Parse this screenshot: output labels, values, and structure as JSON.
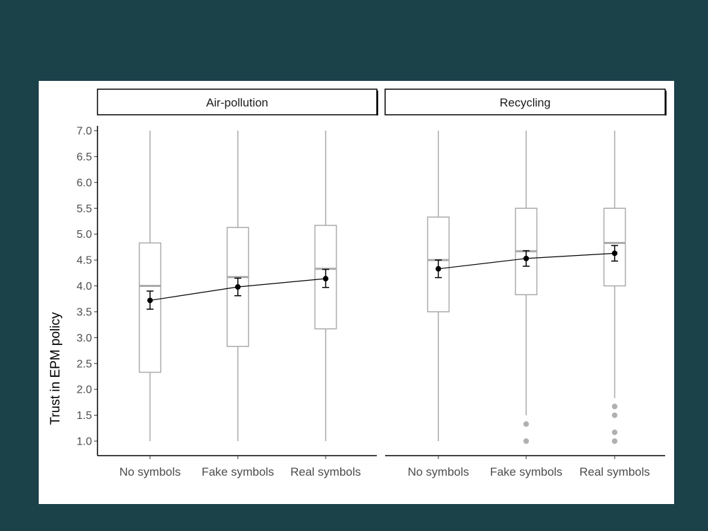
{
  "chart_data": {
    "type": "box",
    "ylabel": "Trust in EPM policy",
    "xlabel": "",
    "ylim": [
      0.75,
      7.25
    ],
    "yticks": [
      "1.0",
      "1.5",
      "2.0",
      "2.5",
      "3.0",
      "3.5",
      "4.0",
      "4.5",
      "5.0",
      "5.5",
      "6.0",
      "6.5",
      "7.0"
    ],
    "grid": false,
    "categories": [
      "No symbols",
      "Fake symbols",
      "Real symbols"
    ],
    "colors": {
      "box": "#aaaaaa",
      "point": "#000000",
      "line": "#000000",
      "outlier": "#b0b0b0"
    },
    "panels": [
      {
        "facet": "Air-pollution",
        "boxes": [
          {
            "category": "No symbols",
            "min": 1.0,
            "q1": 2.33,
            "median": 4.0,
            "q3": 4.83,
            "max": 7.0,
            "outliers": []
          },
          {
            "category": "Fake symbols",
            "min": 1.0,
            "q1": 2.83,
            "median": 4.17,
            "q3": 5.13,
            "max": 7.0,
            "outliers": []
          },
          {
            "category": "Real symbols",
            "min": 1.0,
            "q1": 3.17,
            "median": 4.33,
            "q3": 5.17,
            "max": 7.0,
            "outliers": []
          }
        ],
        "means": [
          {
            "category": "No symbols",
            "mean": 3.72,
            "lower": 3.55,
            "upper": 3.9
          },
          {
            "category": "Fake symbols",
            "mean": 3.98,
            "lower": 3.81,
            "upper": 4.15
          },
          {
            "category": "Real symbols",
            "mean": 4.14,
            "lower": 3.97,
            "upper": 4.32
          }
        ]
      },
      {
        "facet": "Recycling",
        "boxes": [
          {
            "category": "No symbols",
            "min": 1.0,
            "q1": 3.5,
            "median": 4.5,
            "q3": 5.33,
            "max": 7.0,
            "outliers": []
          },
          {
            "category": "Fake symbols",
            "min": 1.5,
            "q1": 3.83,
            "median": 4.67,
            "q3": 5.5,
            "max": 7.0,
            "outliers": [
              1.0,
              1.33
            ]
          },
          {
            "category": "Real symbols",
            "min": 1.83,
            "q1": 4.0,
            "median": 4.83,
            "q3": 5.5,
            "max": 7.0,
            "outliers": [
              1.0,
              1.17,
              1.5,
              1.67
            ]
          }
        ],
        "means": [
          {
            "category": "No symbols",
            "mean": 4.33,
            "lower": 4.16,
            "upper": 4.5
          },
          {
            "category": "Fake symbols",
            "mean": 4.53,
            "lower": 4.38,
            "upper": 4.68
          },
          {
            "category": "Real symbols",
            "mean": 4.63,
            "lower": 4.48,
            "upper": 4.78
          }
        ]
      }
    ]
  }
}
